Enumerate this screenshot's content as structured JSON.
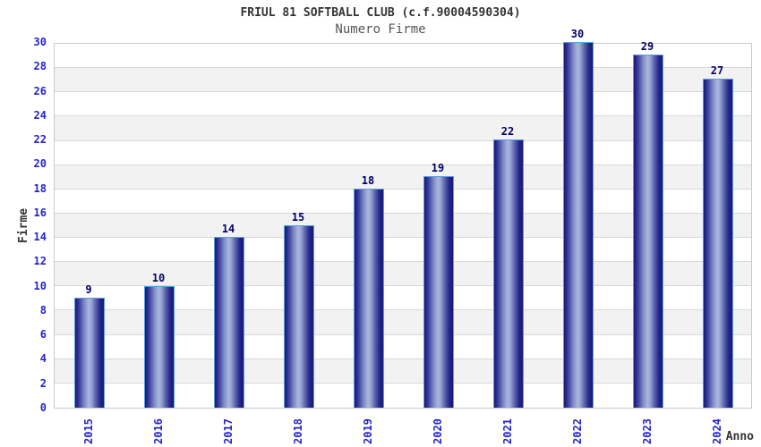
{
  "chart_data": {
    "type": "bar",
    "title": "FRIUL 81 SOFTBALL CLUB (c.f.90004590304)",
    "subtitle": "Numero Firme",
    "xlabel": "Anno",
    "ylabel": "Firme",
    "categories": [
      "2015",
      "2016",
      "2017",
      "2018",
      "2019",
      "2020",
      "2021",
      "2022",
      "2023",
      "2024"
    ],
    "values": [
      9,
      10,
      14,
      15,
      18,
      19,
      22,
      30,
      29,
      27
    ],
    "ylim": [
      0,
      30
    ],
    "ytick_step": 2,
    "yticks": [
      0,
      2,
      4,
      6,
      8,
      10,
      12,
      14,
      16,
      18,
      20,
      22,
      24,
      26,
      28,
      30
    ],
    "grid": true,
    "legend": "none",
    "bands": "alternating horizontal stripes every 2 units, white and light gray",
    "value_labels_shown": true
  },
  "colors": {
    "background": "#ffffff",
    "bar_dark": "#181874",
    "bar_light": "#aab6de",
    "bar_edge": "#5c9ee0",
    "tick_label": "#2323cc",
    "value_label": "#000066",
    "title": "#333333",
    "subtitle": "#555555",
    "axis_title": "#333333",
    "band_alt": "#f2f2f2",
    "gridline": "#d8d8d8",
    "plot_border": "#c9c9c9"
  }
}
